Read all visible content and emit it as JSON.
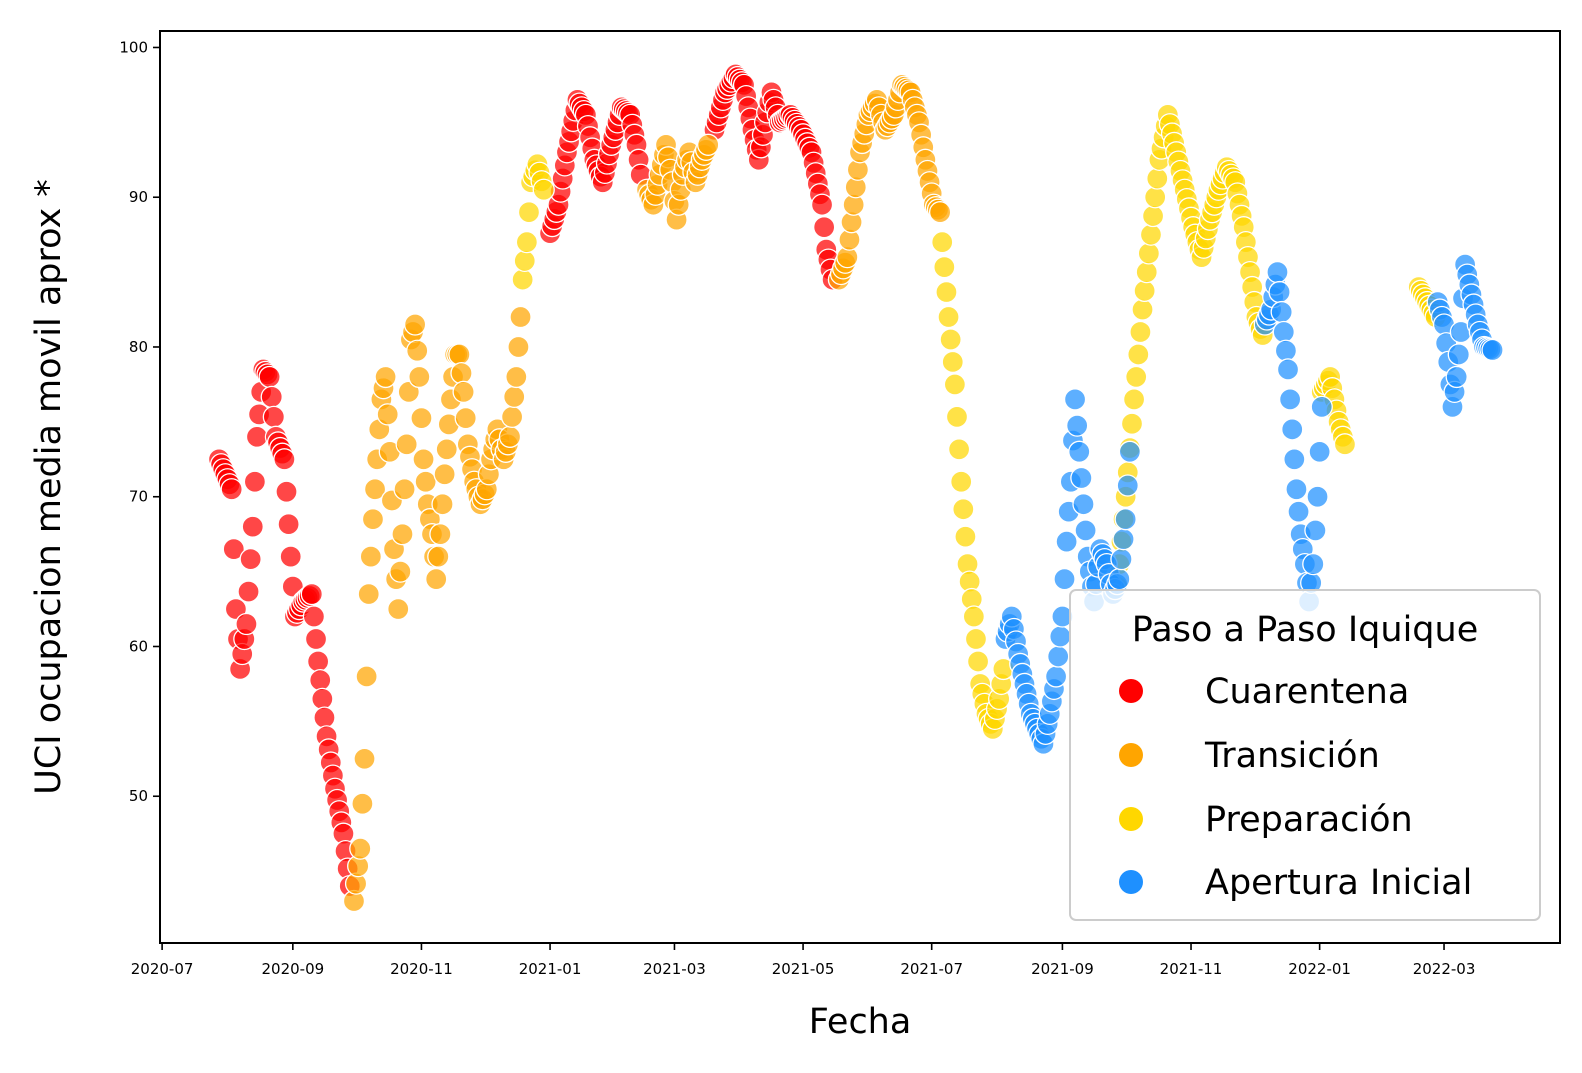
{
  "chart_data": {
    "type": "scatter",
    "title": "",
    "xlabel": "Fecha",
    "ylabel": "UCI ocupacion media movil aprox *",
    "x_ticks": [
      "2020-07",
      "2020-09",
      "2020-11",
      "2021-01",
      "2021-03",
      "2021-05",
      "2021-07",
      "2021-09",
      "2021-11",
      "2022-01",
      "2022-03"
    ],
    "y_ticks": [
      50,
      60,
      70,
      80,
      90,
      100
    ],
    "xlim": [
      "2020-06-30",
      "2022-04-25"
    ],
    "ylim": [
      40.2,
      101.1
    ],
    "grid": false,
    "legend": {
      "title": "Paso a Paso Iquique",
      "position": "lower-right",
      "entries": [
        {
          "label": "Cuarentena",
          "color": "#ff0000"
        },
        {
          "label": "Transición",
          "color": "#ffa500"
        },
        {
          "label": "Preparación",
          "color": "#ffd700"
        },
        {
          "label": "Apertura Inicial",
          "color": "#1e90ff"
        }
      ]
    },
    "series": [
      {
        "name": "Cuarentena",
        "color": "#ff0000",
        "anchors": [
          [
            "2020-07-28",
            72.5
          ],
          [
            "2020-08-03",
            70.5
          ],
          [
            "2020-08-05",
            62.5
          ],
          [
            "2020-08-07",
            58.5
          ],
          [
            "2020-08-10",
            61.5
          ],
          [
            "2020-08-13",
            68.0
          ],
          [
            "2020-08-15",
            74.0
          ],
          [
            "2020-08-18",
            78.5
          ],
          [
            "2020-08-21",
            78.0
          ],
          [
            "2020-08-24",
            74.0
          ],
          [
            "2020-08-28",
            72.5
          ],
          [
            "2020-08-31",
            66.0
          ],
          [
            "2020-09-02",
            62.0
          ],
          [
            "2020-09-06",
            63.0
          ],
          [
            "2020-09-10",
            63.5
          ],
          [
            "2020-09-13",
            59.0
          ],
          [
            "2020-09-17",
            54.0
          ],
          [
            "2020-09-21",
            50.5
          ],
          [
            "2020-09-25",
            47.5
          ],
          [
            "2020-09-28",
            44.0
          ],
          [
            "2021-01-01",
            87.6
          ],
          [
            "2021-01-05",
            89.5
          ],
          [
            "2021-01-09",
            93.0
          ],
          [
            "2021-01-14",
            96.5
          ],
          [
            "2021-01-18",
            95.5
          ],
          [
            "2021-01-22",
            92.5
          ],
          [
            "2021-01-26",
            91.0
          ],
          [
            "2021-01-30",
            93.5
          ],
          [
            "2021-02-04",
            96.0
          ],
          [
            "2021-02-08",
            95.5
          ],
          [
            "2021-02-11",
            93.5
          ],
          [
            "2021-02-13",
            91.5
          ],
          [
            "2021-03-20",
            94.5
          ],
          [
            "2021-03-25",
            97.0
          ],
          [
            "2021-03-30",
            98.2
          ],
          [
            "2021-04-03",
            97.5
          ],
          [
            "2021-04-07",
            94.5
          ],
          [
            "2021-04-10",
            92.5
          ],
          [
            "2021-04-13",
            95.0
          ],
          [
            "2021-04-16",
            97.0
          ],
          [
            "2021-04-20",
            95.0
          ],
          [
            "2021-04-25",
            95.5
          ],
          [
            "2021-04-30",
            94.5
          ],
          [
            "2021-05-05",
            93.0
          ],
          [
            "2021-05-10",
            89.5
          ],
          [
            "2021-05-12",
            86.5
          ],
          [
            "2021-05-15",
            84.5
          ]
        ]
      },
      {
        "name": "Transición",
        "color": "#ffa500",
        "anchors": [
          [
            "2020-09-30",
            43.0
          ],
          [
            "2020-10-03",
            46.5
          ],
          [
            "2020-10-05",
            52.5
          ],
          [
            "2020-10-07",
            63.5
          ],
          [
            "2020-10-09",
            68.5
          ],
          [
            "2020-10-11",
            72.5
          ],
          [
            "2020-10-13",
            76.5
          ],
          [
            "2020-10-15",
            78.0
          ],
          [
            "2020-10-17",
            73.0
          ],
          [
            "2020-10-19",
            66.5
          ],
          [
            "2020-10-21",
            62.5
          ],
          [
            "2020-10-23",
            67.5
          ],
          [
            "2020-10-25",
            73.5
          ],
          [
            "2020-10-27",
            80.5
          ],
          [
            "2020-10-29",
            81.5
          ],
          [
            "2020-10-31",
            78.0
          ],
          [
            "2020-11-02",
            72.5
          ],
          [
            "2020-11-04",
            69.5
          ],
          [
            "2020-11-06",
            67.5
          ],
          [
            "2020-11-08",
            64.5
          ],
          [
            "2020-11-10",
            67.5
          ],
          [
            "2020-11-12",
            71.5
          ],
          [
            "2020-11-15",
            76.5
          ],
          [
            "2020-11-17",
            79.5
          ],
          [
            "2020-11-19",
            79.5
          ],
          [
            "2020-11-21",
            77.0
          ],
          [
            "2020-11-23",
            73.5
          ],
          [
            "2020-11-26",
            71.0
          ],
          [
            "2020-11-29",
            69.5
          ],
          [
            "2020-12-02",
            70.5
          ],
          [
            "2020-12-04",
            72.5
          ],
          [
            "2020-12-07",
            74.5
          ],
          [
            "2020-12-10",
            72.5
          ],
          [
            "2020-12-13",
            74.0
          ],
          [
            "2020-12-16",
            78.0
          ],
          [
            "2020-12-18",
            82.0
          ],
          [
            "2021-02-16",
            90.5
          ],
          [
            "2021-02-19",
            89.5
          ],
          [
            "2021-02-22",
            91.5
          ],
          [
            "2021-02-25",
            93.5
          ],
          [
            "2021-02-28",
            91.0
          ],
          [
            "2021-03-02",
            88.5
          ],
          [
            "2021-03-05",
            91.5
          ],
          [
            "2021-03-08",
            93.0
          ],
          [
            "2021-03-11",
            91.0
          ],
          [
            "2021-03-14",
            92.5
          ],
          [
            "2021-03-17",
            93.5
          ],
          [
            "2021-05-18",
            84.5
          ],
          [
            "2021-05-22",
            86.0
          ],
          [
            "2021-05-25",
            89.5
          ],
          [
            "2021-05-28",
            93.0
          ],
          [
            "2021-06-01",
            95.5
          ],
          [
            "2021-06-05",
            96.5
          ],
          [
            "2021-06-09",
            94.5
          ],
          [
            "2021-06-13",
            95.5
          ],
          [
            "2021-06-17",
            97.5
          ],
          [
            "2021-06-21",
            97.0
          ],
          [
            "2021-06-25",
            95.0
          ],
          [
            "2021-06-28",
            92.5
          ],
          [
            "2021-07-02",
            89.5
          ],
          [
            "2021-07-05",
            89.0
          ]
        ]
      },
      {
        "name": "Preparación",
        "color": "#ffd700",
        "anchors": [
          [
            "2020-12-19",
            84.5
          ],
          [
            "2020-12-21",
            87.0
          ],
          [
            "2020-12-23",
            91.0
          ],
          [
            "2020-12-26",
            92.2
          ],
          [
            "2020-12-29",
            90.5
          ],
          [
            "2021-07-06",
            87.0
          ],
          [
            "2021-07-09",
            82.0
          ],
          [
            "2021-07-12",
            77.5
          ],
          [
            "2021-07-15",
            71.0
          ],
          [
            "2021-07-18",
            65.5
          ],
          [
            "2021-07-21",
            62.0
          ],
          [
            "2021-07-24",
            57.5
          ],
          [
            "2021-07-27",
            55.5
          ],
          [
            "2021-07-30",
            54.5
          ],
          [
            "2021-08-02",
            56.5
          ],
          [
            "2021-08-04",
            58.5
          ],
          [
            "2021-09-27",
            64.0
          ],
          [
            "2021-10-01",
            70.0
          ],
          [
            "2021-10-05",
            76.5
          ],
          [
            "2021-10-09",
            82.5
          ],
          [
            "2021-10-13",
            87.5
          ],
          [
            "2021-10-17",
            92.5
          ],
          [
            "2021-10-21",
            95.5
          ],
          [
            "2021-10-25",
            93.0
          ],
          [
            "2021-10-29",
            90.5
          ],
          [
            "2021-11-02",
            88.0
          ],
          [
            "2021-11-06",
            86.0
          ],
          [
            "2021-11-10",
            88.5
          ],
          [
            "2021-11-14",
            90.5
          ],
          [
            "2021-11-18",
            92.0
          ],
          [
            "2021-11-22",
            91.0
          ],
          [
            "2021-11-26",
            88.0
          ],
          [
            "2021-11-29",
            85.0
          ],
          [
            "2021-12-02",
            82.0
          ],
          [
            "2021-12-05",
            80.8
          ],
          [
            "2022-01-02",
            77.0
          ],
          [
            "2022-01-06",
            78.0
          ],
          [
            "2022-01-10",
            75.0
          ],
          [
            "2022-01-13",
            73.5
          ],
          [
            "2022-02-17",
            84.0
          ],
          [
            "2022-02-21",
            83.0
          ],
          [
            "2022-02-25",
            82.0
          ]
        ]
      },
      {
        "name": "Apertura Inicial",
        "color": "#1e90ff",
        "anchors": [
          [
            "2021-08-05",
            60.5
          ],
          [
            "2021-08-08",
            62.0
          ],
          [
            "2021-08-11",
            59.5
          ],
          [
            "2021-08-14",
            57.5
          ],
          [
            "2021-08-17",
            55.5
          ],
          [
            "2021-08-20",
            54.5
          ],
          [
            "2021-08-23",
            53.5
          ],
          [
            "2021-08-26",
            55.5
          ],
          [
            "2021-08-29",
            58.0
          ],
          [
            "2021-09-01",
            62.0
          ],
          [
            "2021-09-03",
            67.0
          ],
          [
            "2021-09-05",
            71.0
          ],
          [
            "2021-09-07",
            76.5
          ],
          [
            "2021-09-09",
            73.0
          ],
          [
            "2021-09-11",
            69.5
          ],
          [
            "2021-09-13",
            66.0
          ],
          [
            "2021-09-16",
            63.0
          ],
          [
            "2021-09-19",
            66.5
          ],
          [
            "2021-09-22",
            65.5
          ],
          [
            "2021-09-25",
            63.5
          ],
          [
            "2021-09-28",
            64.5
          ],
          [
            "2021-10-01",
            68.5
          ],
          [
            "2021-10-03",
            73.0
          ],
          [
            "2021-12-06",
            81.5
          ],
          [
            "2021-12-09",
            82.5
          ],
          [
            "2021-12-12",
            85.0
          ],
          [
            "2021-12-15",
            81.0
          ],
          [
            "2021-12-17",
            78.5
          ],
          [
            "2021-12-19",
            74.5
          ],
          [
            "2021-12-21",
            70.5
          ],
          [
            "2021-12-23",
            67.5
          ],
          [
            "2021-12-25",
            65.5
          ],
          [
            "2021-12-27",
            63.0
          ],
          [
            "2021-12-29",
            65.5
          ],
          [
            "2021-12-31",
            70.0
          ],
          [
            "2022-01-02",
            76.0
          ],
          [
            "2022-02-26",
            83.0
          ],
          [
            "2022-03-01",
            81.5
          ],
          [
            "2022-03-03",
            79.0
          ],
          [
            "2022-03-05",
            76.0
          ],
          [
            "2022-03-07",
            78.0
          ],
          [
            "2022-03-09",
            81.0
          ],
          [
            "2022-03-11",
            85.5
          ],
          [
            "2022-03-14",
            83.5
          ],
          [
            "2022-03-17",
            81.5
          ],
          [
            "2022-03-20",
            80.0
          ],
          [
            "2022-03-24",
            79.8
          ]
        ]
      }
    ]
  }
}
